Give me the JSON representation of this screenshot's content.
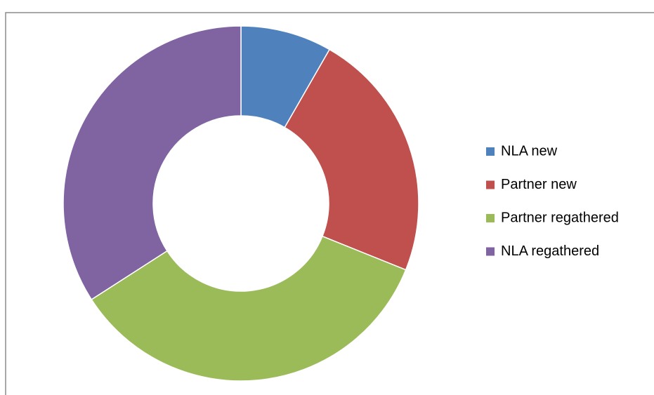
{
  "chart_data": {
    "type": "donut",
    "categories": [
      "NLA new",
      "Partner new",
      "Partner regathered",
      "NLA regathered"
    ],
    "values": [
      8.3,
      22.8,
      34.8,
      34.1
    ],
    "colors": [
      "#4f81bd",
      "#c0504d",
      "#9bbb59",
      "#8064a2"
    ],
    "legend": "right"
  }
}
